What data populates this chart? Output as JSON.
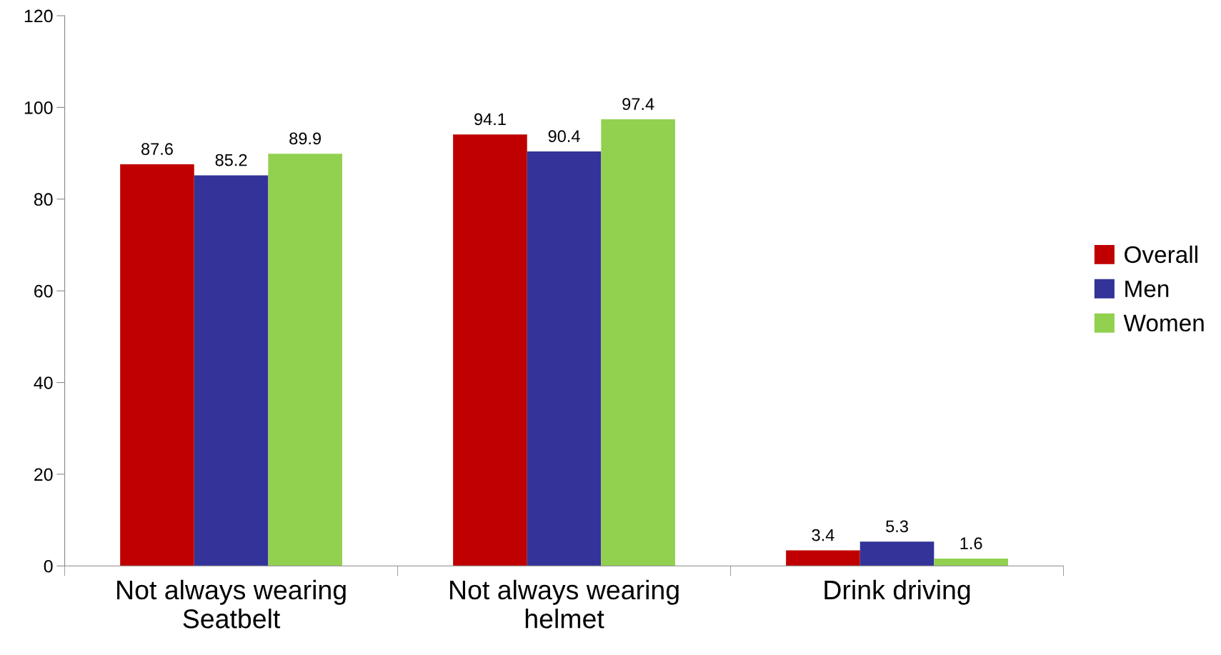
{
  "chart_data": {
    "type": "bar",
    "categories": [
      "Not always wearing\nSeatbelt",
      "Not always wearing\nhelmet",
      "Drink driving"
    ],
    "series": [
      {
        "name": "Overall",
        "color": "#c00000",
        "values": [
          87.6,
          94.1,
          3.4
        ]
      },
      {
        "name": "Men",
        "color": "#333399",
        "values": [
          85.2,
          90.4,
          5.3
        ]
      },
      {
        "name": "Women",
        "color": "#92d050",
        "values": [
          89.9,
          97.4,
          1.6
        ]
      }
    ],
    "ylim": [
      0,
      120
    ],
    "yticks": [
      0,
      20,
      40,
      60,
      80,
      100,
      120
    ],
    "data_labels": true,
    "grid": false,
    "legend": "right"
  }
}
